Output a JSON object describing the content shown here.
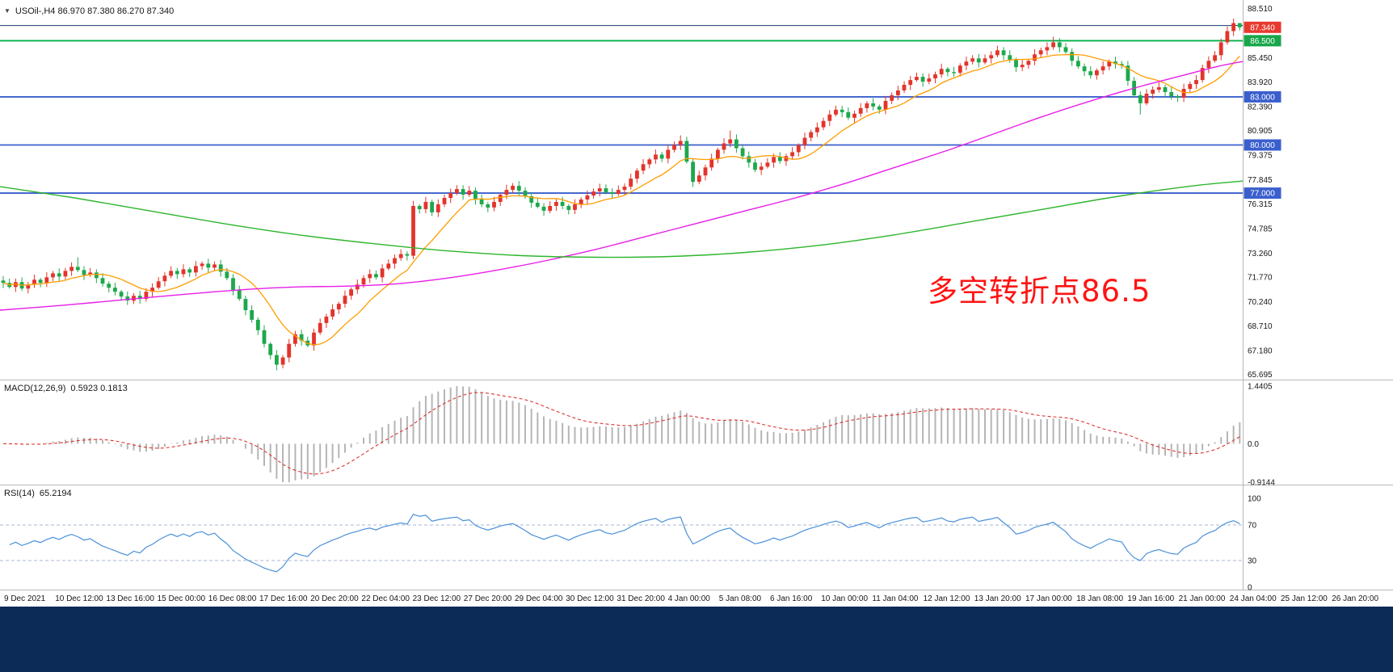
{
  "header": {
    "title_line": "USOil-,H4 86.970 87.380 86.270 87.340"
  },
  "annotation": {
    "text": "多空转折点86.5",
    "color": "#ff1414"
  },
  "indicators": {
    "macd": {
      "label": "MACD(12,26,9)",
      "values": "0.5923 0.1813"
    },
    "rsi": {
      "label": "RSI(14)",
      "value": "65.2194"
    }
  },
  "chart_data": {
    "type": "candlestick",
    "up_color": "#e3342b",
    "down_color": "#1da84c",
    "price_scale": {
      "visible_range": [
        65.37,
        89.04
      ]
    },
    "price_axis_labels": [
      "88.510",
      "85.450",
      "83.920",
      "82.390",
      "80.905",
      "79.375",
      "77.845",
      "76.315",
      "74.785",
      "73.260",
      "71.770",
      "70.240",
      "68.710",
      "67.180",
      "65.695"
    ],
    "price_tags": [
      {
        "text": "87.340",
        "price": 87.34,
        "color": "#e8392f"
      },
      {
        "text": "86.500",
        "price": 86.5,
        "color": "#17a64a"
      },
      {
        "text": "83.000",
        "price": 83.0,
        "color": "#3a5fcd"
      },
      {
        "text": "80.000",
        "price": 80.0,
        "color": "#3a5fcd"
      },
      {
        "text": "77.000",
        "price": 77.0,
        "color": "#3a5fcd"
      }
    ],
    "horizontal_lines": [
      {
        "price": 87.45,
        "color": "#33517f",
        "width": 1.2
      },
      {
        "price": 86.5,
        "color": "#00b14a",
        "width": 1.8
      },
      {
        "price": 83.0,
        "color": "#3a5fcd",
        "width": 1.8
      },
      {
        "price": 80.0,
        "color": "#3a5fcd",
        "width": 1.8
      },
      {
        "price": 77.0,
        "color": "#3a5fcd",
        "width": 1.8
      }
    ],
    "candles": {
      "open_first": 71.55,
      "closes": [
        71.4,
        71.15,
        71.45,
        71.05,
        71.3,
        71.6,
        71.4,
        71.75,
        72.0,
        71.8,
        72.15,
        72.4,
        72.2,
        71.9,
        72.05,
        71.7,
        71.35,
        71.1,
        70.85,
        70.55,
        70.3,
        70.6,
        70.4,
        70.85,
        71.1,
        71.5,
        71.85,
        72.15,
        71.95,
        72.25,
        72.05,
        72.45,
        72.6,
        72.35,
        72.55,
        72.1,
        71.7,
        70.95,
        70.4,
        69.7,
        69.1,
        68.45,
        67.6,
        66.9,
        66.3,
        66.75,
        67.6,
        68.2,
        67.8,
        67.5,
        68.3,
        68.9,
        69.3,
        69.75,
        70.1,
        70.6,
        71.0,
        71.3,
        71.7,
        71.95,
        71.75,
        72.3,
        72.6,
        72.95,
        73.2,
        73.1,
        76.2,
        76.0,
        76.45,
        75.8,
        76.3,
        76.7,
        77.0,
        77.25,
        76.9,
        77.15,
        76.6,
        76.3,
        76.1,
        76.45,
        76.9,
        77.2,
        77.45,
        77.15,
        76.8,
        76.4,
        76.15,
        75.9,
        76.2,
        76.45,
        76.2,
        75.95,
        76.3,
        76.6,
        76.85,
        77.1,
        77.3,
        77.05,
        76.95,
        77.2,
        77.4,
        77.9,
        78.4,
        78.8,
        79.1,
        79.4,
        79.15,
        79.7,
        80.0,
        80.25,
        78.95,
        77.7,
        78.1,
        78.6,
        79.15,
        79.7,
        80.1,
        80.35,
        79.8,
        79.3,
        78.9,
        78.45,
        78.65,
        78.9,
        79.25,
        79.0,
        79.3,
        79.55,
        80.0,
        80.45,
        80.8,
        81.1,
        81.5,
        81.9,
        82.2,
        82.05,
        81.7,
        81.95,
        82.3,
        82.6,
        82.4,
        82.2,
        82.75,
        83.1,
        83.4,
        83.75,
        84.05,
        84.25,
        83.95,
        84.15,
        84.4,
        84.75,
        84.55,
        84.5,
        84.95,
        85.2,
        85.4,
        85.15,
        85.4,
        85.6,
        85.9,
        85.6,
        85.3,
        84.85,
        85.0,
        85.25,
        85.65,
        85.9,
        86.1,
        86.4,
        86.1,
        85.8,
        85.25,
        84.9,
        84.6,
        84.35,
        84.65,
        84.9,
        85.2,
        85.05,
        84.95,
        84.0,
        83.1,
        82.6,
        83.2,
        83.45,
        83.6,
        83.3,
        83.05,
        82.95,
        83.5,
        83.8,
        84.05,
        84.8,
        85.25,
        85.6,
        86.4,
        87.1,
        87.6,
        87.34
      ],
      "wick_overrides": {
        "12": {
          "high": 73.0
        },
        "44": {
          "low": 65.95
        },
        "109": {
          "high": 80.6
        },
        "117": {
          "high": 80.9
        },
        "169": {
          "high": 86.75
        },
        "183": {
          "low": 81.9
        },
        "198": {
          "high": 87.88
        },
        "199": {
          "high": 87.6
        }
      }
    },
    "moving_averages": {
      "fast": {
        "type": "sma",
        "period": 10,
        "color": "#ff9d00",
        "width": 1.3
      },
      "mid": {
        "color": "#e81ee8",
        "width": 1.4,
        "points": [
          [
            0,
            69.7
          ],
          [
            0.05,
            70.0
          ],
          [
            0.1,
            70.35
          ],
          [
            0.15,
            70.7
          ],
          [
            0.2,
            71.0
          ],
          [
            0.24,
            71.15
          ],
          [
            0.28,
            71.2
          ],
          [
            0.32,
            71.35
          ],
          [
            0.36,
            71.7
          ],
          [
            0.4,
            72.2
          ],
          [
            0.44,
            72.8
          ],
          [
            0.48,
            73.5
          ],
          [
            0.52,
            74.3
          ],
          [
            0.56,
            75.1
          ],
          [
            0.6,
            75.9
          ],
          [
            0.64,
            76.7
          ],
          [
            0.68,
            77.6
          ],
          [
            0.72,
            78.6
          ],
          [
            0.76,
            79.6
          ],
          [
            0.8,
            80.7
          ],
          [
            0.84,
            81.8
          ],
          [
            0.88,
            82.8
          ],
          [
            0.92,
            83.7
          ],
          [
            0.95,
            84.3
          ],
          [
            0.98,
            84.9
          ],
          [
            1.0,
            85.2
          ]
        ]
      },
      "slow": {
        "color": "#2db52d",
        "width": 1.4,
        "points": [
          [
            0,
            77.4
          ],
          [
            0.06,
            76.7
          ],
          [
            0.12,
            75.9
          ],
          [
            0.18,
            75.1
          ],
          [
            0.24,
            74.4
          ],
          [
            0.3,
            73.85
          ],
          [
            0.36,
            73.4
          ],
          [
            0.42,
            73.1
          ],
          [
            0.48,
            73.0
          ],
          [
            0.54,
            73.05
          ],
          [
            0.6,
            73.3
          ],
          [
            0.66,
            73.75
          ],
          [
            0.72,
            74.4
          ],
          [
            0.78,
            75.2
          ],
          [
            0.84,
            76.0
          ],
          [
            0.9,
            76.8
          ],
          [
            0.96,
            77.45
          ],
          [
            1.0,
            77.75
          ]
        ]
      }
    },
    "macd": {
      "fast": 12,
      "slow": 26,
      "signal": 9,
      "hist_color": "#b5b5b5",
      "signal_color": "#dd3333",
      "axis_labels": [
        "1.4405",
        "0.0",
        "-0.9144"
      ]
    },
    "rsi": {
      "period": 14,
      "line_color": "#4a90d9",
      "levels": [
        70,
        30
      ],
      "level_color": "#a9b9cf",
      "axis_labels": [
        "100",
        "70",
        "30",
        "0"
      ]
    },
    "time_labels": [
      "9 Dec 2021",
      "10 Dec 12:00",
      "13 Dec 16:00",
      "15 Dec 00:00",
      "16 Dec 08:00",
      "17 Dec 16:00",
      "20 Dec 20:00",
      "22 Dec 04:00",
      "23 Dec 12:00",
      "27 Dec 20:00",
      "29 Dec 04:00",
      "30 Dec 12:00",
      "31 Dec 20:00",
      "4 Jan 00:00",
      "5 Jan 08:00",
      "6 Jan 16:00",
      "10 Jan 00:00",
      "11 Jan 04:00",
      "12 Jan 12:00",
      "13 Jan 20:00",
      "17 Jan 00:00",
      "18 Jan 08:00",
      "19 Jan 16:00",
      "21 Jan 00:00",
      "24 Jan 04:00",
      "25 Jan 12:00",
      "26 Jan 20:00"
    ]
  }
}
